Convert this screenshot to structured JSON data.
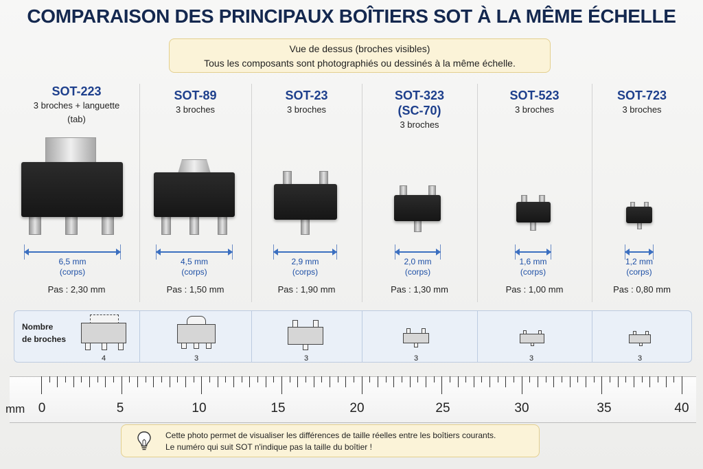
{
  "title": "COMPARAISON DES PRINCIPAUX BOÎTIERS SOT À LA MÊME ÉCHELLE",
  "note_top": {
    "line1": "Vue de dessus (broches visibles)",
    "line2": "Tous les composants sont photographiés ou dessinés à la même échelle."
  },
  "packages": [
    {
      "name": "SOT-223",
      "desc_line1": "3 broches + languette",
      "desc_line2": "(tab)",
      "width": "6,5 mm",
      "width_note": "(corps)",
      "pitch": "Pas : 2,30 mm",
      "pins": "4"
    },
    {
      "name": "SOT-89",
      "desc_line1": "3 broches",
      "width": "4,5 mm",
      "width_note": "(corps)",
      "pitch": "Pas : 1,50 mm",
      "pins": "3"
    },
    {
      "name": "SOT-23",
      "desc_line1": "3 broches",
      "width": "2,9 mm",
      "width_note": "(corps)",
      "pitch": "Pas : 1,90 mm",
      "pins": "3"
    },
    {
      "name": "SOT-323",
      "name_line2": "(SC-70)",
      "desc_line1": "3 broches",
      "width": "2,0 mm",
      "width_note": "(corps)",
      "pitch": "Pas : 1,30 mm",
      "pins": "3"
    },
    {
      "name": "SOT-523",
      "desc_line1": "3 broches",
      "width": "1,6 mm",
      "width_note": "(corps)",
      "pitch": "Pas : 1,00 mm",
      "pins": "3"
    },
    {
      "name": "SOT-723",
      "desc_line1": "3 broches",
      "width": "1,2 mm",
      "width_note": "(corps)",
      "pitch": "Pas : 0,80 mm",
      "pins": "3"
    }
  ],
  "pins_label_line1": "Nombre",
  "pins_label_line2": "de broches",
  "ruler": {
    "unit": "mm",
    "labels": [
      "0",
      "5",
      "10",
      "15",
      "20",
      "25",
      "30",
      "35",
      "40"
    ],
    "range_mm": [
      0,
      40
    ]
  },
  "note_bottom": {
    "line1": "Cette photo permet de visualiser les différences de taille réelles entre les boîtiers courants.",
    "line2": "Le numéro qui suit SOT n'indique pas la taille du boîtier !",
    "icon": "lightbulb-icon"
  },
  "colors": {
    "title": "#14284f",
    "accent_blue": "#1d3f8c",
    "note_bg": "#fbf3d8"
  }
}
